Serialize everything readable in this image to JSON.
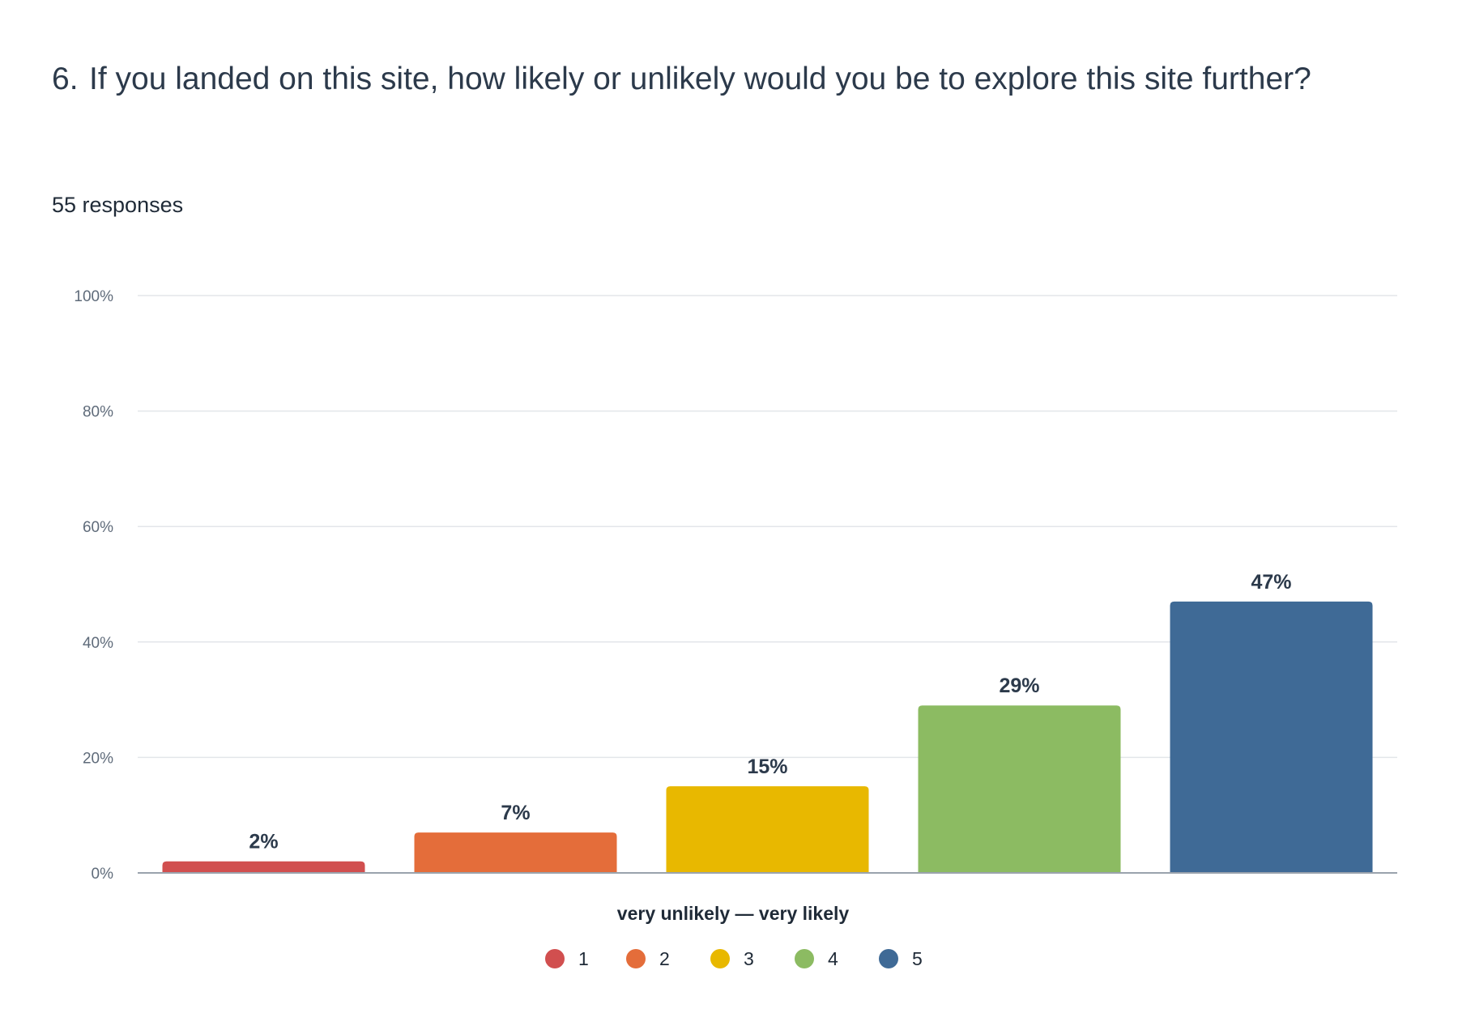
{
  "question": {
    "number": "6.",
    "text": "If you landed on this site, how likely or unlikely would you be to explore this site further?"
  },
  "responses_label": "55 responses",
  "chart_data": {
    "type": "bar",
    "categories": [
      "1",
      "2",
      "3",
      "4",
      "5"
    ],
    "values": [
      2,
      7,
      15,
      29,
      47
    ],
    "value_labels": [
      "2%",
      "7%",
      "15%",
      "29%",
      "47%"
    ],
    "colors": [
      "#d14f4f",
      "#e46d3a",
      "#e8b800",
      "#8cbb62",
      "#3f6a96"
    ],
    "ylim": [
      0,
      100
    ],
    "yticks": [
      0,
      20,
      40,
      60,
      80,
      100
    ],
    "ytick_labels": [
      "0%",
      "20%",
      "40%",
      "60%",
      "80%",
      "100%"
    ],
    "xlabel": "very unlikely — very likely",
    "legend": [
      "1",
      "2",
      "3",
      "4",
      "5"
    ],
    "legend_position": "bottom",
    "grid": true
  }
}
